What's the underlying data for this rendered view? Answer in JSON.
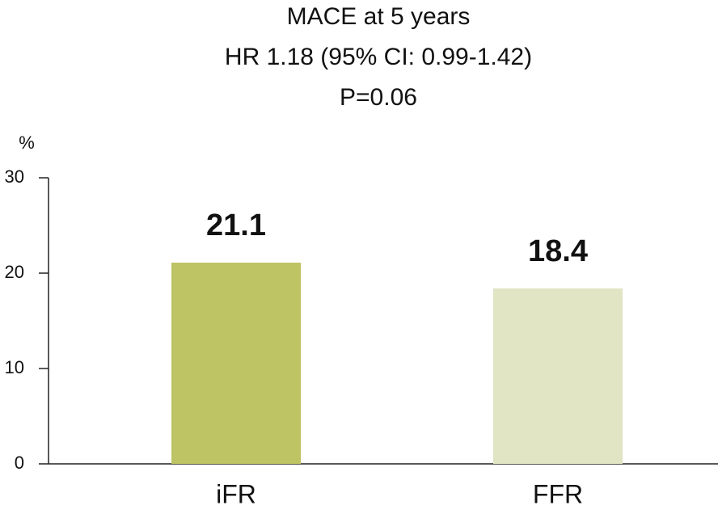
{
  "chart_data": {
    "type": "bar",
    "title": [
      "MACE at 5 years",
      "HR 1.18 (95% CI: 0.99-1.42)",
      "P=0.06"
    ],
    "y_label": "%",
    "categories": [
      "iFR",
      "FFR"
    ],
    "values": [
      21.1,
      18.4
    ],
    "colors": [
      "#bec363",
      "#e1e5c4"
    ],
    "ylim": [
      0,
      30
    ],
    "yticks": [
      0,
      10,
      20,
      30
    ],
    "data_labels": true
  }
}
